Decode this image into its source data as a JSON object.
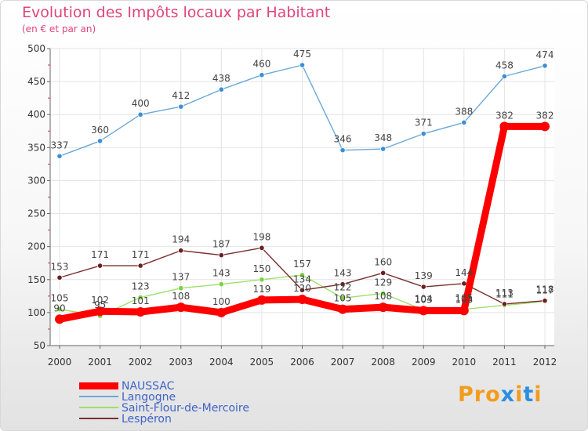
{
  "page": {
    "title": "Evolution des Impôts locaux par Habitant",
    "subtitle": "(en € et par an)",
    "brand_parts": [
      "Pro",
      "x",
      "i",
      "t",
      "i"
    ],
    "brand_colors": [
      "#f29b1d",
      "#2c8ee0",
      "#f29b1d",
      "#2c8ee0",
      "#f29b1d"
    ]
  },
  "chart_data": {
    "type": "line",
    "title": "Evolution des Impôts locaux par Habitant",
    "subtitle": "(en € et par an)",
    "xlabel": "",
    "ylabel": "",
    "x": [
      "2000",
      "2001",
      "2002",
      "2003",
      "2004",
      "2005",
      "2006",
      "2007",
      "2008",
      "2009",
      "2010",
      "2011",
      "2012"
    ],
    "ylim": [
      50,
      500
    ],
    "yticks": [
      "50",
      "100",
      "150",
      "200",
      "250",
      "300",
      "350",
      "400",
      "450",
      "500"
    ],
    "grid": true,
    "legend_position": "bottom-left",
    "series": [
      {
        "name": "NAUSSAC",
        "color": "#ff0000",
        "marker_color": "#ff0000",
        "values": [
          90,
          102,
          101,
          108,
          100,
          119,
          120,
          105,
          108,
          103,
          103,
          382,
          382
        ],
        "labels": [
          "90",
          "102",
          "101",
          "108",
          "100",
          "119",
          "120",
          "105",
          "108",
          "103",
          "103",
          "382",
          "382"
        ]
      },
      {
        "name": "Langogne",
        "color": "#6aa9d8",
        "marker_color": "#3a8fd6",
        "values": [
          337,
          360,
          400,
          412,
          438,
          460,
          475,
          346,
          348,
          371,
          388,
          458,
          474
        ],
        "labels": [
          "337",
          "360",
          "400",
          "412",
          "438",
          "460",
          "475",
          "346",
          "348",
          "371",
          "388",
          "458",
          "474"
        ]
      },
      {
        "name": "Saint-Flour-de-Mercoire",
        "color": "#9ee06a",
        "marker_color": "#78d33c",
        "values": [
          105,
          95,
          123,
          137,
          143,
          150,
          157,
          122,
          129,
          104,
          105,
          111,
          117
        ],
        "labels": [
          "105",
          "95",
          "123",
          "137",
          "143",
          "150",
          "157",
          "122",
          "129",
          "104",
          "105",
          "111",
          "117"
        ]
      },
      {
        "name": "Lespéron",
        "color": "#7a2e2e",
        "marker_color": "#6b1f1f",
        "values": [
          153,
          171,
          171,
          194,
          187,
          198,
          134,
          143,
          160,
          139,
          144,
          113,
          118
        ],
        "labels": [
          "153",
          "171",
          "171",
          "194",
          "187",
          "198",
          "134",
          "143",
          "160",
          "139",
          "144",
          "113",
          "118"
        ]
      }
    ]
  }
}
